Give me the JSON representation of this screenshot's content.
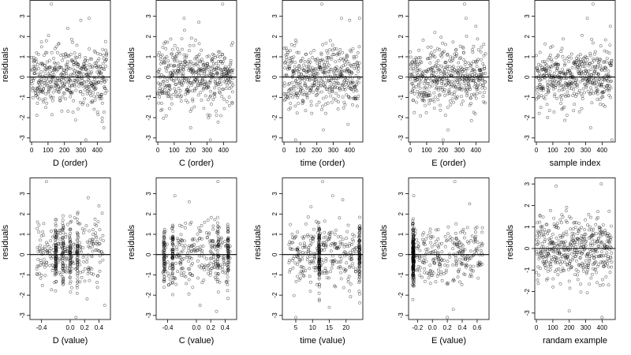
{
  "figure": {
    "title": "",
    "panel_count": 10
  },
  "chart_data": [
    {
      "type": "scatter",
      "xlabel": "D (order)",
      "ylabel": "residuals",
      "xlim": [
        -10,
        480
      ],
      "ylim": [
        -3.2,
        3.8
      ],
      "xticks": [
        0,
        100,
        200,
        300,
        400
      ],
      "xtick_labels": [
        "0",
        "100",
        "200",
        "300",
        "400"
      ],
      "yticks": [
        -3,
        -2,
        -1,
        0,
        1,
        2,
        3
      ],
      "ytick_labels": [
        "-3",
        "-2",
        "-1",
        "0",
        "1",
        "2",
        "3"
      ],
      "hline": 0,
      "n": 460,
      "x_kind": "index",
      "seed": 11,
      "outliers": [
        [
          120,
          3.6
        ],
        [
          300,
          2.8
        ],
        [
          350,
          2.9
        ],
        [
          330,
          -3.1
        ],
        [
          440,
          -2.5
        ],
        [
          430,
          -2.2
        ],
        [
          220,
          2.4
        ]
      ]
    },
    {
      "type": "scatter",
      "xlabel": "C (order)",
      "ylabel": "residuals",
      "xlim": [
        -10,
        480
      ],
      "ylim": [
        -3.2,
        3.8
      ],
      "xticks": [
        0,
        100,
        200,
        300,
        400
      ],
      "xtick_labels": [
        "0",
        "100",
        "200",
        "300",
        "400"
      ],
      "yticks": [
        -3,
        -2,
        -1,
        0,
        1,
        2,
        3
      ],
      "ytick_labels": [
        "-3",
        "-2",
        "-1",
        "0",
        "1",
        "2",
        "3"
      ],
      "hline": 0,
      "n": 460,
      "x_kind": "index",
      "seed": 23,
      "outliers": [
        [
          395,
          3.6
        ],
        [
          320,
          -3.1
        ],
        [
          200,
          -2.5
        ],
        [
          160,
          2.9
        ],
        [
          250,
          2.7
        ]
      ]
    },
    {
      "type": "scatter",
      "xlabel": "time (order)",
      "ylabel": "residuals",
      "xlim": [
        -10,
        480
      ],
      "ylim": [
        -3.2,
        3.8
      ],
      "xticks": [
        0,
        100,
        200,
        300,
        400
      ],
      "xtick_labels": [
        "0",
        "100",
        "200",
        "300",
        "400"
      ],
      "yticks": [
        -3,
        -2,
        -1,
        0,
        1,
        2,
        3
      ],
      "ytick_labels": [
        "-3",
        "-2",
        "-1",
        "0",
        "1",
        "2",
        "3"
      ],
      "hline": 0,
      "n": 460,
      "x_kind": "index",
      "seed": 37,
      "outliers": [
        [
          230,
          3.6
        ],
        [
          350,
          2.9
        ],
        [
          460,
          2.9
        ],
        [
          70,
          -3.1
        ],
        [
          240,
          -2.6
        ],
        [
          400,
          2.8
        ]
      ]
    },
    {
      "type": "scatter",
      "xlabel": "E (order)",
      "ylabel": "residuals",
      "xlim": [
        -10,
        480
      ],
      "ylim": [
        -3.2,
        3.8
      ],
      "xticks": [
        0,
        100,
        200,
        300,
        400
      ],
      "xtick_labels": [
        "0",
        "100",
        "200",
        "300",
        "400"
      ],
      "yticks": [
        -3,
        -2,
        -1,
        0,
        1,
        2,
        3
      ],
      "ytick_labels": [
        "-3",
        "-2",
        "-1",
        "0",
        "1",
        "2",
        "3"
      ],
      "hline": 0,
      "n": 460,
      "x_kind": "index",
      "seed": 41,
      "outliers": [
        [
          330,
          3.6
        ],
        [
          340,
          2.9
        ],
        [
          400,
          2.5
        ],
        [
          200,
          -3.1
        ],
        [
          150,
          2.2
        ],
        [
          230,
          -2.6
        ]
      ]
    },
    {
      "type": "scatter",
      "xlabel": "sample index",
      "ylabel": "residuals",
      "xlim": [
        -10,
        480
      ],
      "ylim": [
        -3.2,
        3.8
      ],
      "xticks": [
        0,
        100,
        200,
        300,
        400
      ],
      "xtick_labels": [
        "0",
        "100",
        "200",
        "300",
        "400"
      ],
      "yticks": [
        -3,
        -2,
        -1,
        0,
        1,
        2,
        3
      ],
      "ytick_labels": [
        "-3",
        "-2",
        "-1",
        "0",
        "1",
        "2",
        "3"
      ],
      "hline": 0,
      "n": 460,
      "x_kind": "index",
      "seed": 53,
      "outliers": [
        [
          345,
          3.6
        ],
        [
          310,
          2.9
        ],
        [
          460,
          -3.1
        ],
        [
          330,
          -2.5
        ],
        [
          450,
          2.5
        ]
      ]
    },
    {
      "type": "scatter",
      "xlabel": "D (value)",
      "ylabel": "residuals",
      "xlim": [
        -0.56,
        0.56
      ],
      "ylim": [
        -3.2,
        3.8
      ],
      "xticks": [
        -0.4,
        0.0,
        0.2,
        0.4
      ],
      "xtick_labels": [
        "-0.4",
        "0.0",
        "0.2",
        "0.4"
      ],
      "yticks": [
        -3,
        -2,
        -1,
        0,
        1,
        2,
        3
      ],
      "ytick_labels": [
        "-3",
        "-2",
        "-1",
        "0",
        "1",
        "2",
        "3"
      ],
      "hline": 0,
      "n": 460,
      "x_kind": "value",
      "seed": 67,
      "stripes": [
        -0.2,
        -0.1,
        0.0,
        0.1
      ],
      "outliers": [
        [
          -0.33,
          3.6
        ],
        [
          0.08,
          -3.1
        ],
        [
          0.48,
          -2.5
        ],
        [
          0.25,
          2.8
        ],
        [
          0.4,
          2.4
        ]
      ]
    },
    {
      "type": "scatter",
      "xlabel": "C (value)",
      "ylabel": "residuals",
      "xlim": [
        -0.56,
        0.56
      ],
      "ylim": [
        -3.2,
        3.8
      ],
      "xticks": [
        -0.4,
        0.0,
        0.2,
        0.4
      ],
      "xtick_labels": [
        "-0.4",
        "0.0",
        "0.2",
        "0.4"
      ],
      "yticks": [
        -3,
        -2,
        -1,
        0,
        1,
        2,
        3
      ],
      "ytick_labels": [
        "-3",
        "-2",
        "-1",
        "0",
        "1",
        "2",
        "3"
      ],
      "hline": 0,
      "n": 460,
      "x_kind": "value",
      "seed": 79,
      "stripes": [
        -0.45,
        -0.33,
        0.3,
        0.44
      ],
      "outliers": [
        [
          0.3,
          3.6
        ],
        [
          -0.3,
          2.9
        ],
        [
          0.28,
          -2.8
        ],
        [
          0.05,
          -2.5
        ],
        [
          -0.1,
          2.6
        ]
      ]
    },
    {
      "type": "scatter",
      "xlabel": "time (value)",
      "ylabel": "residuals",
      "xlim": [
        1,
        25
      ],
      "ylim": [
        -3.2,
        3.8
      ],
      "xticks": [
        5,
        10,
        15,
        20
      ],
      "xtick_labels": [
        "5",
        "10",
        "15",
        "20"
      ],
      "yticks": [
        -3,
        -2,
        -1,
        0,
        1,
        2,
        3
      ],
      "ytick_labels": [
        "-3",
        "-2",
        "-1",
        "0",
        "1",
        "2",
        "3"
      ],
      "hline": 0,
      "n": 460,
      "x_kind": "value",
      "seed": 83,
      "stripes": [
        12,
        24
      ],
      "outliers": [
        [
          13,
          3.6
        ],
        [
          5,
          -3.1
        ],
        [
          16,
          2.9
        ],
        [
          19,
          2.7
        ],
        [
          15,
          -2.6
        ]
      ]
    },
    {
      "type": "scatter",
      "xlabel": "E (value)",
      "ylabel": "residuals",
      "xlim": [
        -0.32,
        0.76
      ],
      "ylim": [
        -3.2,
        3.8
      ],
      "xticks": [
        -0.2,
        0.0,
        0.2,
        0.4,
        0.6
      ],
      "xtick_labels": [
        "-0.2",
        "0.0",
        "0.2",
        "0.4",
        "0.6"
      ],
      "yticks": [
        -3,
        -2,
        -1,
        0,
        1,
        2,
        3
      ],
      "ytick_labels": [
        "-3",
        "-2",
        "-1",
        "0",
        "1",
        "2",
        "3"
      ],
      "hline": 0,
      "n": 460,
      "x_kind": "value",
      "seed": 97,
      "stripes": [
        -0.26,
        -0.26,
        -0.25
      ],
      "outliers": [
        [
          0.3,
          3.6
        ],
        [
          -0.25,
          2.9
        ],
        [
          0.28,
          -2.7
        ],
        [
          0.2,
          -3.1
        ],
        [
          0.5,
          2.5
        ]
      ]
    },
    {
      "type": "scatter",
      "xlabel": "randam example",
      "ylabel": "residuals",
      "xlim": [
        -10,
        480
      ],
      "ylim": [
        -3.3,
        3.3
      ],
      "xticks": [
        0,
        100,
        200,
        300,
        400
      ],
      "xtick_labels": [
        "0",
        "100",
        "200",
        "300",
        "400"
      ],
      "yticks": [
        -3,
        -2,
        -1,
        0,
        1,
        2,
        3
      ],
      "ytick_labels": [
        "-3",
        "-2",
        "-1",
        "0",
        "1",
        "2",
        "3"
      ],
      "hline": 0,
      "n": 460,
      "x_kind": "index",
      "seed": 101,
      "outliers": [
        [
          395,
          3.0
        ],
        [
          400,
          -3.2
        ],
        [
          200,
          -2.9
        ],
        [
          120,
          2.9
        ]
      ]
    }
  ]
}
